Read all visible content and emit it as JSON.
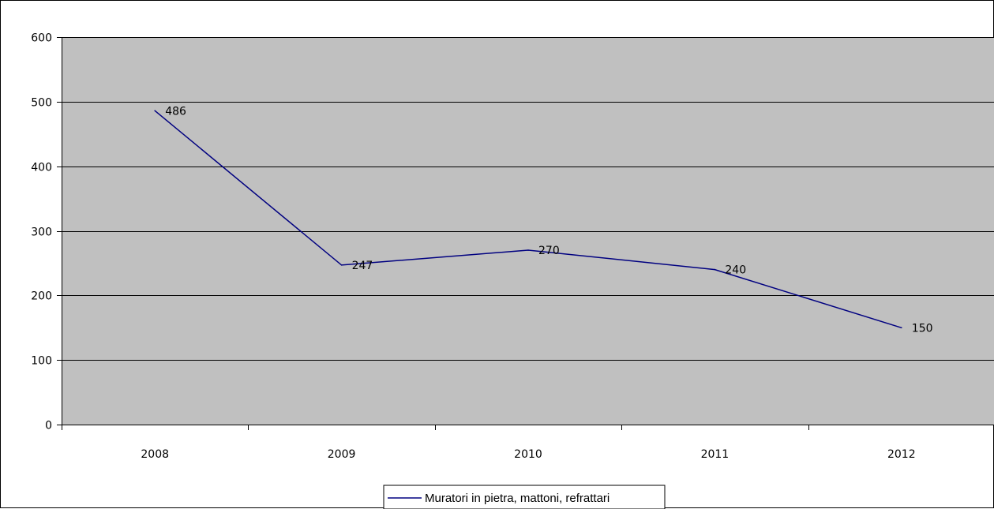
{
  "chart_data": {
    "type": "line",
    "categories": [
      "2008",
      "2009",
      "2010",
      "2011",
      "2012"
    ],
    "series": [
      {
        "name": "Muratori in pietra, mattoni, refrattari",
        "values": [
          486,
          247,
          270,
          240,
          150
        ],
        "color": "#000080"
      }
    ],
    "data_labels": [
      "486",
      "247",
      "270",
      "240",
      "150"
    ],
    "ylim": [
      0,
      600
    ],
    "yticks": [
      0,
      100,
      200,
      300,
      400,
      500,
      600
    ],
    "ytick_labels": [
      "0",
      "100",
      "200",
      "300",
      "400",
      "500",
      "600"
    ],
    "xlabel": "",
    "ylabel": "",
    "grid": true,
    "legend_position": "bottom",
    "plot_background": "#c0c0c0",
    "gridline_color": "#000000",
    "line_color": "#000080"
  }
}
